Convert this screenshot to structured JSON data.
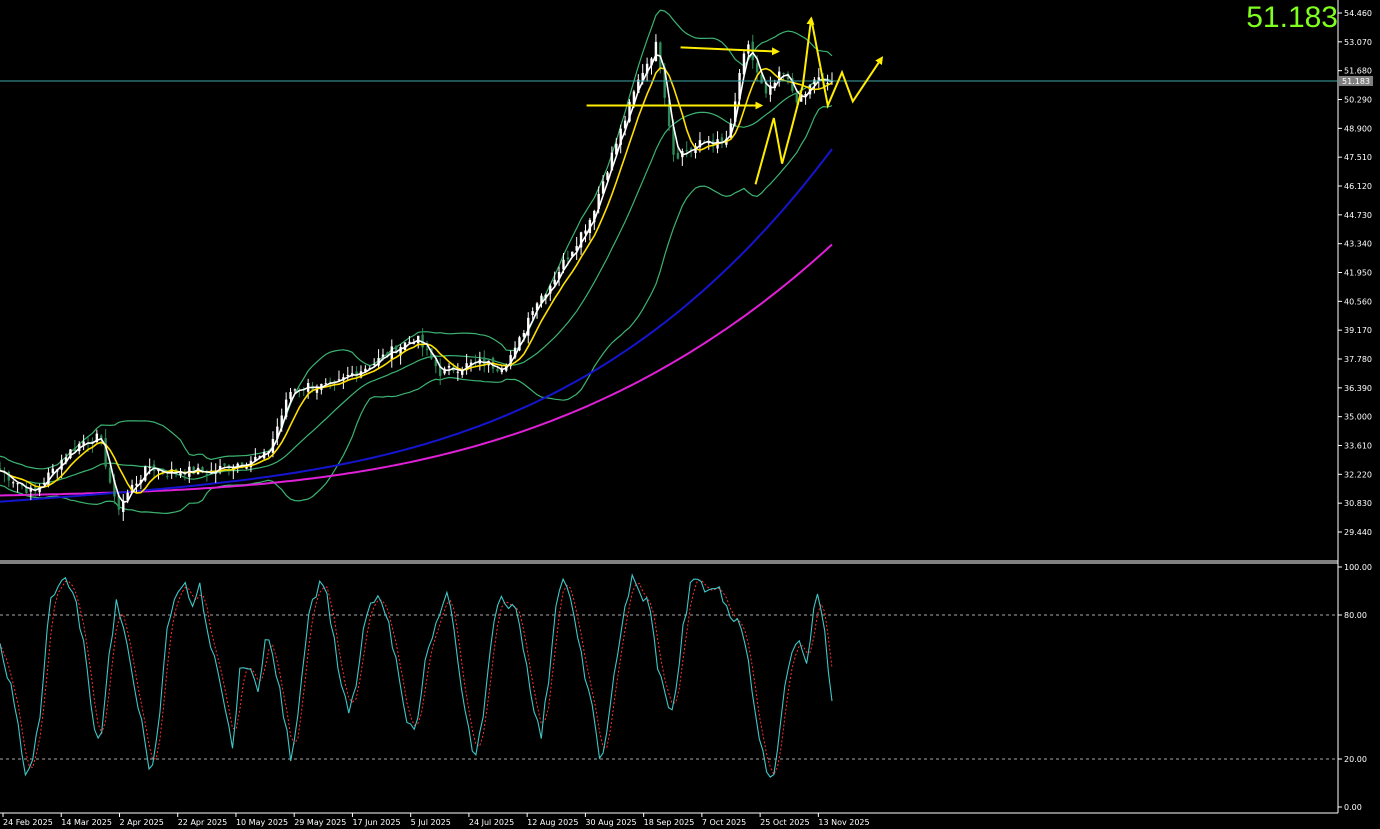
{
  "header": {
    "current_price": "51.183"
  },
  "colors": {
    "background": "#000000",
    "bull_candle": "#ffffff",
    "bear_candle": "#2e8b57",
    "ma_fast": "#ffffff",
    "ma_yellow": "#ffe000",
    "ma_blue": "#1515d0",
    "ma_magenta": "#e020d8",
    "bollinger": "#3cb371",
    "stoch_main": "#3fc7c7",
    "stoch_signal": "#ff3030",
    "annotation": "#ffee00",
    "price_line": "#3fa8a8",
    "price_text": "#7fff1e"
  },
  "chart_data": [
    {
      "type": "line",
      "name": "price",
      "y_ticks": [
        "54.460",
        "53.070",
        "51.680",
        "50.290",
        "48.900",
        "47.510",
        "46.120",
        "44.730",
        "43.340",
        "41.950",
        "40.560",
        "39.170",
        "37.780",
        "36.390",
        "35.000",
        "33.610",
        "32.220",
        "30.830",
        "29.440"
      ],
      "ylim": [
        28.5,
        54.9
      ],
      "x_ticks": [
        "24 Feb 2025",
        "14 Mar 2025",
        "2 Apr 2025",
        "22 Apr 2025",
        "10 May 2025",
        "29 May 2025",
        "17 Jun 2025",
        "5 Jul 2025",
        "24 Jul 2025",
        "12 Aug 2025",
        "30 Aug 2025",
        "18 Sep 2025",
        "7 Oct 2025",
        "25 Oct 2025",
        "13 Nov 2025"
      ],
      "current_price_label": "51.183",
      "close_profile": {
        "x": [
          0,
          0.04,
          0.08,
          0.1,
          0.12,
          0.14,
          0.16,
          0.18,
          0.2,
          0.22,
          0.25,
          0.28,
          0.3,
          0.32,
          0.35,
          0.37,
          0.4,
          0.42,
          0.45,
          0.48,
          0.5,
          0.53,
          0.55,
          0.58,
          0.6,
          0.62,
          0.64,
          0.66,
          0.68,
          0.71,
          0.73,
          0.75,
          0.77,
          0.79,
          0.81,
          0.83,
          0.85,
          0.87,
          0.88,
          0.89,
          0.9,
          0.92,
          0.94,
          0.96,
          0.97,
          0.98,
          0.99,
          1.0
        ],
        "y": [
          32.4,
          31.3,
          33.2,
          33.8,
          34.0,
          30.5,
          31.7,
          32.6,
          32.3,
          32.4,
          32.3,
          32.7,
          32.9,
          33.1,
          36.3,
          36.5,
          36.4,
          37.0,
          37.6,
          38.4,
          38.8,
          37.1,
          37.4,
          37.6,
          37.4,
          38.2,
          40.3,
          41.3,
          42.6,
          44.6,
          47.0,
          49.2,
          51.5,
          53.0,
          47.6,
          47.9,
          48.3,
          48.1,
          49.1,
          51.9,
          52.8,
          50.4,
          51.6,
          50.2,
          50.6,
          51.4,
          51.0,
          51.183
        ]
      }
    },
    {
      "type": "line",
      "name": "stochastic",
      "y_ticks": [
        "100.00",
        "80.00",
        "20.00",
        "0.00"
      ],
      "ylim": [
        0,
        100
      ],
      "profile": {
        "x": [
          0,
          0.02,
          0.03,
          0.04,
          0.05,
          0.06,
          0.07,
          0.08,
          0.09,
          0.1,
          0.11,
          0.12,
          0.13,
          0.14,
          0.15,
          0.16,
          0.17,
          0.18,
          0.19,
          0.2,
          0.22,
          0.23,
          0.24,
          0.25,
          0.26,
          0.27,
          0.28,
          0.29,
          0.31,
          0.32,
          0.33,
          0.34,
          0.35,
          0.36,
          0.37,
          0.38,
          0.39,
          0.4,
          0.41,
          0.42,
          0.43,
          0.44,
          0.45,
          0.46,
          0.47,
          0.48,
          0.49,
          0.5,
          0.51,
          0.52,
          0.53,
          0.54,
          0.55,
          0.56,
          0.57,
          0.58,
          0.59,
          0.6,
          0.61,
          0.62,
          0.63,
          0.64,
          0.65,
          0.66,
          0.67,
          0.68,
          0.69,
          0.7,
          0.71,
          0.72,
          0.73,
          0.74,
          0.75,
          0.76,
          0.77,
          0.78,
          0.79,
          0.8,
          0.81,
          0.82,
          0.83,
          0.84,
          0.85,
          0.86,
          0.87,
          0.88,
          0.89,
          0.9,
          0.91,
          0.92,
          0.93,
          0.94,
          0.95,
          0.96,
          0.97,
          0.98,
          0.99,
          1.0
        ],
        "y": [
          68,
          40,
          14,
          18,
          45,
          88,
          92,
          96,
          86,
          70,
          40,
          25,
          60,
          86,
          70,
          55,
          35,
          12,
          30,
          75,
          95,
          85,
          92,
          70,
          58,
          40,
          25,
          62,
          50,
          72,
          60,
          40,
          20,
          45,
          80,
          90,
          95,
          72,
          50,
          38,
          55,
          80,
          85,
          88,
          70,
          55,
          35,
          30,
          58,
          72,
          80,
          90,
          60,
          40,
          18,
          35,
          70,
          90,
          80,
          85,
          65,
          45,
          28,
          55,
          92,
          95,
          78,
          60,
          45,
          20,
          30,
          60,
          82,
          95,
          88,
          85,
          60,
          45,
          40,
          72,
          92,
          96,
          88,
          93,
          86,
          80,
          75,
          60,
          35,
          16,
          14,
          40,
          65,
          72,
          60,
          90,
          78,
          42
        ]
      }
    }
  ],
  "annotations": [
    {
      "name": "support-line",
      "from": [
        0.705,
        50.0
      ],
      "to": [
        0.915,
        50.0
      ]
    },
    {
      "name": "resistance-line",
      "from": [
        0.818,
        52.8
      ],
      "to": [
        0.935,
        52.6
      ]
    }
  ]
}
